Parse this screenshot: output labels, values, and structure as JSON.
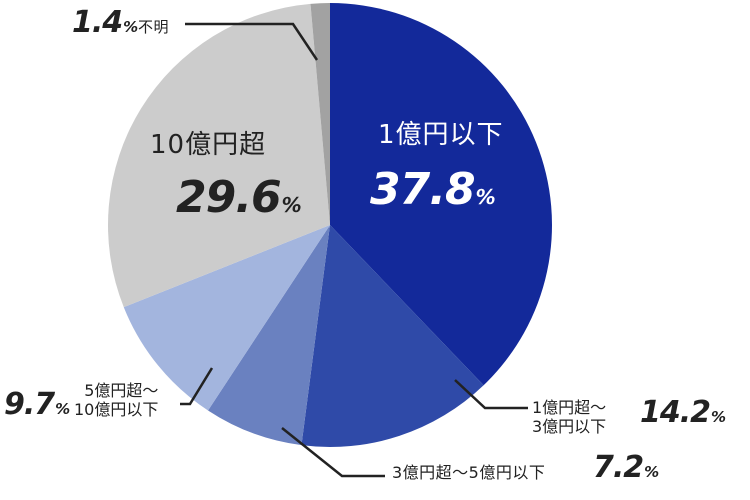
{
  "chart_data": {
    "type": "pie",
    "start_angle_deg": 0,
    "direction": "clockwise",
    "slices": [
      {
        "label": "1億円以下",
        "value": 37.8,
        "color": "#13299a"
      },
      {
        "label": "1億円超～3億円以下",
        "value": 14.2,
        "color": "#2f4aa8"
      },
      {
        "label": "3億円超～5億円以下",
        "value": 7.2,
        "color": "#6a81c0"
      },
      {
        "label": "5億円超～10億円以下",
        "value": 9.7,
        "color": "#a3b5de"
      },
      {
        "label": "10億円超",
        "value": 29.6,
        "color": "#cccccc"
      },
      {
        "label": "不明",
        "value": 1.4,
        "color": "#a2a2a2"
      }
    ],
    "labels": {
      "s0": {
        "cat": "1億円以下",
        "num": "37.8",
        "unit": "%"
      },
      "s1": {
        "line1": "1億円超～",
        "line2": "3億円以下",
        "num": "14.2",
        "unit": "%"
      },
      "s2": {
        "cat": "3億円超～5億円以下",
        "num": "7.2",
        "unit": "%"
      },
      "s3": {
        "line1": "5億円超～",
        "line2": "10億円以下",
        "num": "9.7",
        "unit": "%"
      },
      "s4": {
        "cat": "10億円超",
        "num": "29.6",
        "unit": "%"
      },
      "s5": {
        "cat": "不明",
        "num": "1.4",
        "unit": "%"
      }
    }
  }
}
